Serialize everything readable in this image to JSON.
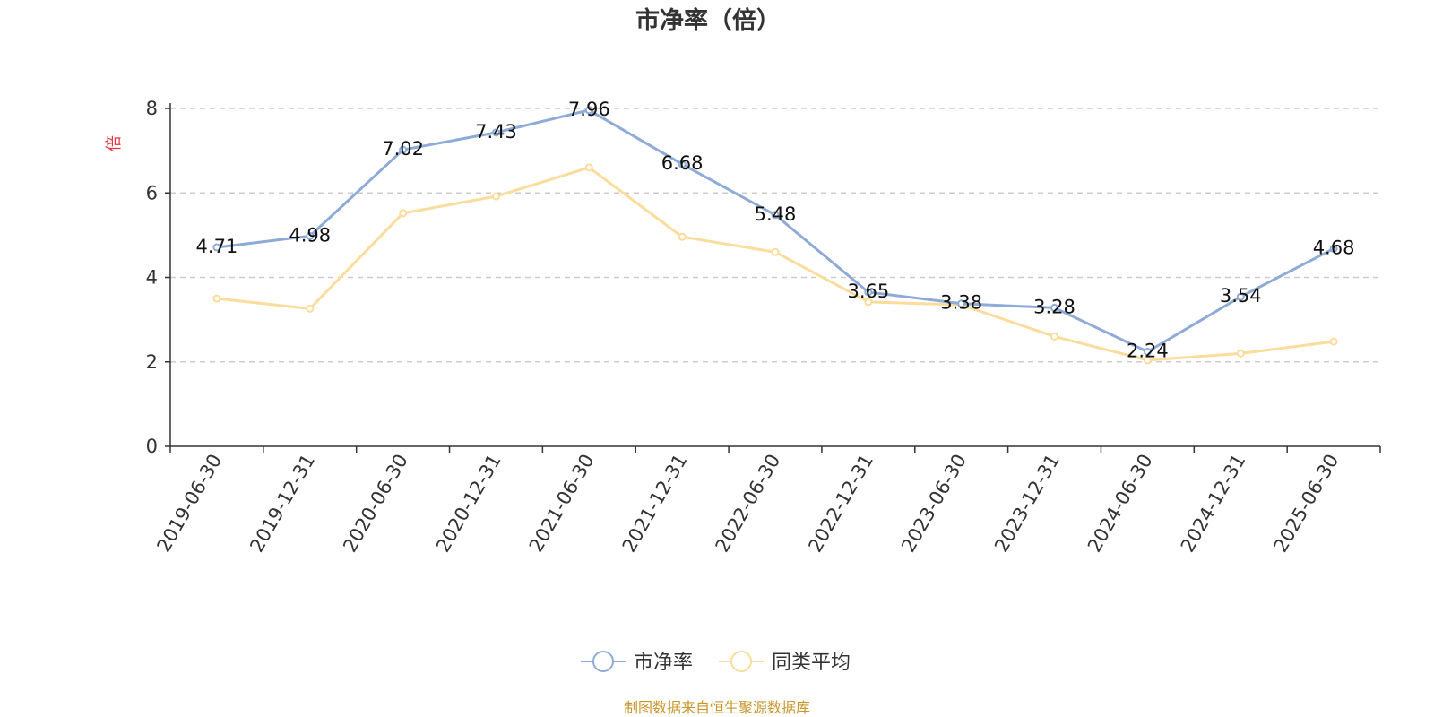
{
  "chart_data": {
    "type": "line",
    "title": "市净率（倍）",
    "ylabel": "倍",
    "xlabel": "",
    "ylim": [
      0,
      8
    ],
    "yticks": [
      0,
      2,
      4,
      6,
      8
    ],
    "grid": true,
    "legend_position": "bottom-center",
    "categories": [
      "2019-06-30",
      "2019-12-31",
      "2020-06-30",
      "2020-12-31",
      "2021-06-30",
      "2021-12-31",
      "2022-06-30",
      "2022-12-31",
      "2023-06-30",
      "2023-12-31",
      "2024-06-30",
      "2024-12-31",
      "2025-06-30"
    ],
    "series": [
      {
        "name": "市净率",
        "color": "#8eabd8",
        "values": [
          4.71,
          4.98,
          7.02,
          7.43,
          7.96,
          6.68,
          5.48,
          3.65,
          3.38,
          3.28,
          2.24,
          3.54,
          4.68
        ],
        "show_labels": true,
        "labels": [
          "4.71",
          "4.98",
          "7.02",
          "7.43",
          "7.96",
          "6.68",
          "5.48",
          "3.65",
          "3.38",
          "3.28",
          "2.24",
          "3.54",
          "4.68"
        ]
      },
      {
        "name": "同类平均",
        "color": "#fbdc9b",
        "values": [
          3.5,
          3.26,
          5.52,
          5.92,
          6.6,
          4.96,
          4.6,
          3.42,
          3.35,
          2.6,
          2.04,
          2.2,
          2.48
        ],
        "show_labels": false
      }
    ]
  },
  "colors": {
    "axis": "#333333",
    "grid": "#cccccc",
    "ylabel": "#e8323c",
    "source": "#c8962a"
  },
  "source_note": "制图数据来自恒生聚源数据库"
}
